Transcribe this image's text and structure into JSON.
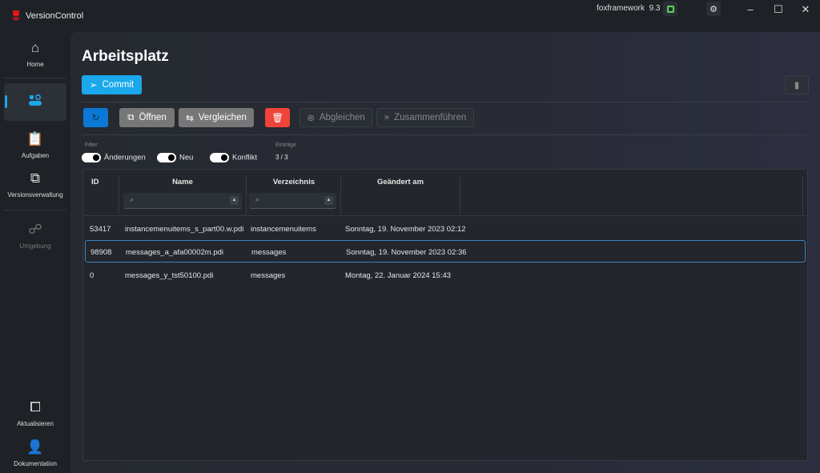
{
  "app": {
    "title": "VersionControl",
    "framework": "foxframework",
    "version": "9.3"
  },
  "sidebar": {
    "items": [
      {
        "label": "Home",
        "icon": "home-icon"
      },
      {
        "label": "",
        "icon": "workspace-icon",
        "active": true
      },
      {
        "label": "Aufgaben",
        "icon": "clipboard-check-icon"
      },
      {
        "label": "Versionsverwaltung",
        "icon": "code-window-icon"
      },
      {
        "label": "Umgebung",
        "icon": "network-icon",
        "disabled": true
      }
    ],
    "bottom": [
      {
        "label": "Aktualisieren",
        "icon": "update-window-icon"
      },
      {
        "label": "Dokumentation",
        "icon": "user-help-icon"
      }
    ]
  },
  "page": {
    "title": "Arbeitsplatz",
    "commit": "Commit"
  },
  "toolbar": {
    "open": "Öffnen",
    "compare": "Vergleichen",
    "sync": "Abgleichen",
    "merge": "Zusammenführen"
  },
  "filter": {
    "label": "Filter",
    "changes": "Änderungen",
    "new": "Neu",
    "conflict": "Konflikt",
    "entries_label": "Einträge",
    "entries": "3 / 3"
  },
  "table": {
    "headers": [
      "ID",
      "Name",
      "Verzeichnis",
      "Geändert am"
    ],
    "rows": [
      {
        "id": "53417",
        "name": "instancemenuitems_s_part00.w.pdi",
        "dir": "instancemenuitems",
        "date": "Sonntag, 19. November 2023 02:12"
      },
      {
        "id": "98908",
        "name": "messages_a_afa00002m.pdi",
        "dir": "messages",
        "date": "Sonntag, 19. November 2023 02:36",
        "selected": true
      },
      {
        "id": "0",
        "name": "messages_y_tst50100.pdi",
        "dir": "messages",
        "date": "Montag, 22. Januar 2024 15:43"
      }
    ]
  },
  "colors": {
    "accent": "#1aa7ec",
    "refresh": "#0a78d4",
    "delete": "#f0443a"
  }
}
